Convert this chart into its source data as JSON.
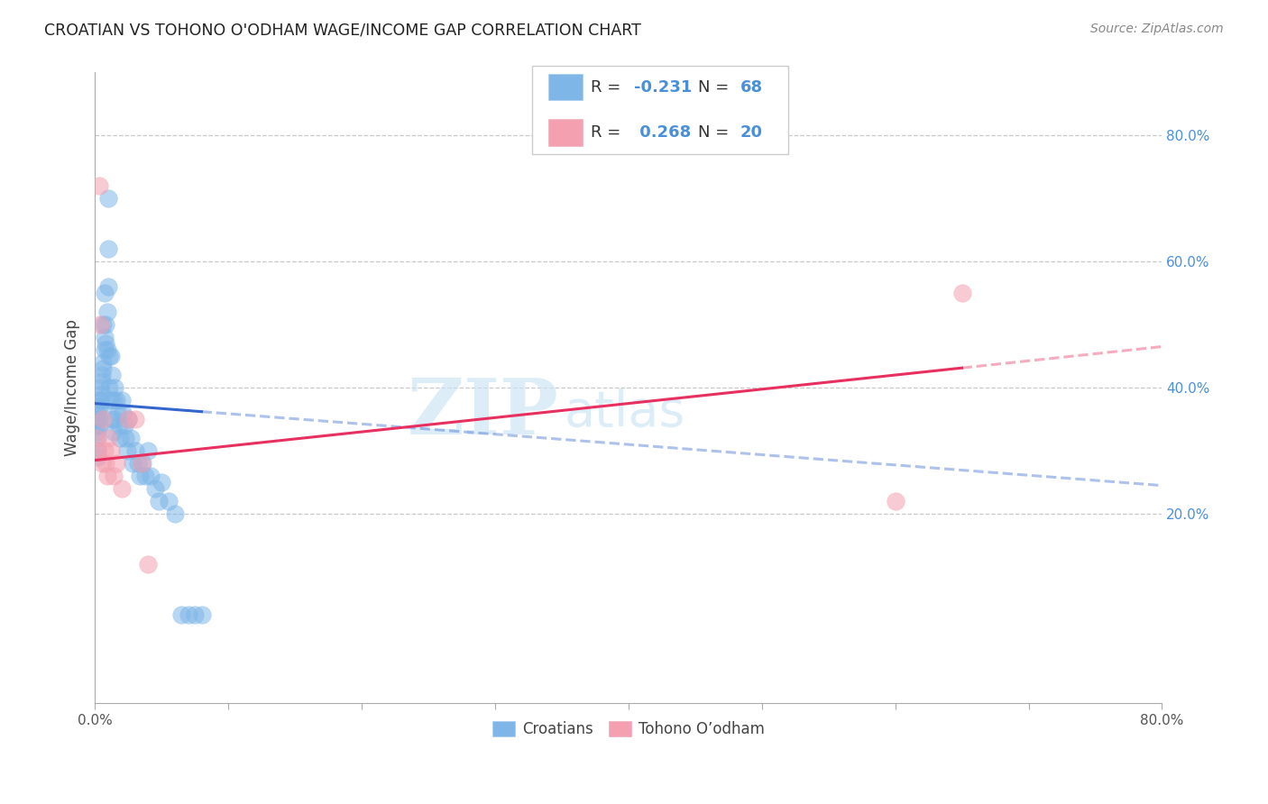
{
  "title": "CROATIAN VS TOHONO O'ODHAM WAGE/INCOME GAP CORRELATION CHART",
  "source": "Source: ZipAtlas.com",
  "ylabel": "Wage/Income Gap",
  "ytick_labels": [
    "20.0%",
    "40.0%",
    "60.0%",
    "80.0%"
  ],
  "ytick_values": [
    0.2,
    0.4,
    0.6,
    0.8
  ],
  "xmin": 0.0,
  "xmax": 0.8,
  "ymin": -0.1,
  "ymax": 0.9,
  "legend_croatians": "Croatians",
  "legend_tohono": "Tohono O’odham",
  "R_croatians": -0.231,
  "N_croatians": 68,
  "R_tohono": 0.268,
  "N_tohono": 20,
  "color_croatians": "#7eb6e8",
  "color_tohono": "#f4a0b0",
  "line_color_croatians": "#3366cc",
  "line_color_tohono": "#e83060",
  "watermark_zip": "ZIP",
  "watermark_atlas": "atlas",
  "bg_color": "#ffffff",
  "grid_color": "#bbbbbb",
  "axis_color": "#aaaaaa",
  "croatians_x": [
    0.001,
    0.001,
    0.001,
    0.002,
    0.002,
    0.002,
    0.002,
    0.003,
    0.003,
    0.003,
    0.003,
    0.004,
    0.004,
    0.004,
    0.005,
    0.005,
    0.005,
    0.006,
    0.006,
    0.006,
    0.007,
    0.007,
    0.007,
    0.008,
    0.008,
    0.009,
    0.009,
    0.01,
    0.01,
    0.01,
    0.011,
    0.011,
    0.012,
    0.012,
    0.013,
    0.013,
    0.014,
    0.014,
    0.015,
    0.015,
    0.016,
    0.017,
    0.018,
    0.019,
    0.02,
    0.021,
    0.022,
    0.023,
    0.024,
    0.025,
    0.027,
    0.028,
    0.03,
    0.032,
    0.034,
    0.036,
    0.038,
    0.04,
    0.042,
    0.045,
    0.048,
    0.05,
    0.055,
    0.06,
    0.065,
    0.07,
    0.075,
    0.08
  ],
  "croatians_y": [
    0.35,
    0.34,
    0.33,
    0.36,
    0.32,
    0.3,
    0.29,
    0.38,
    0.37,
    0.35,
    0.34,
    0.4,
    0.38,
    0.37,
    0.42,
    0.41,
    0.39,
    0.44,
    0.43,
    0.5,
    0.48,
    0.46,
    0.55,
    0.5,
    0.47,
    0.52,
    0.46,
    0.56,
    0.62,
    0.7,
    0.45,
    0.4,
    0.45,
    0.38,
    0.42,
    0.35,
    0.38,
    0.33,
    0.4,
    0.35,
    0.38,
    0.36,
    0.34,
    0.32,
    0.38,
    0.36,
    0.34,
    0.32,
    0.3,
    0.35,
    0.32,
    0.28,
    0.3,
    0.28,
    0.26,
    0.28,
    0.26,
    0.3,
    0.26,
    0.24,
    0.22,
    0.25,
    0.22,
    0.2,
    0.04,
    0.04,
    0.04,
    0.04
  ],
  "tohono_x": [
    0.001,
    0.002,
    0.003,
    0.004,
    0.005,
    0.006,
    0.007,
    0.008,
    0.009,
    0.01,
    0.012,
    0.014,
    0.016,
    0.02,
    0.025,
    0.03,
    0.035,
    0.04,
    0.6,
    0.65
  ],
  "tohono_y": [
    0.32,
    0.3,
    0.72,
    0.5,
    0.28,
    0.35,
    0.3,
    0.28,
    0.26,
    0.32,
    0.3,
    0.26,
    0.28,
    0.24,
    0.35,
    0.35,
    0.28,
    0.12,
    0.22,
    0.55
  ],
  "cr_line_x0": 0.0,
  "cr_line_x1": 0.8,
  "cr_line_y0": 0.375,
  "cr_line_y1": 0.245,
  "cr_line_solid_end": 0.08,
  "to_line_x0": 0.0,
  "to_line_x1": 0.8,
  "to_line_y0": 0.285,
  "to_line_y1": 0.465,
  "to_line_solid_end": 0.65
}
